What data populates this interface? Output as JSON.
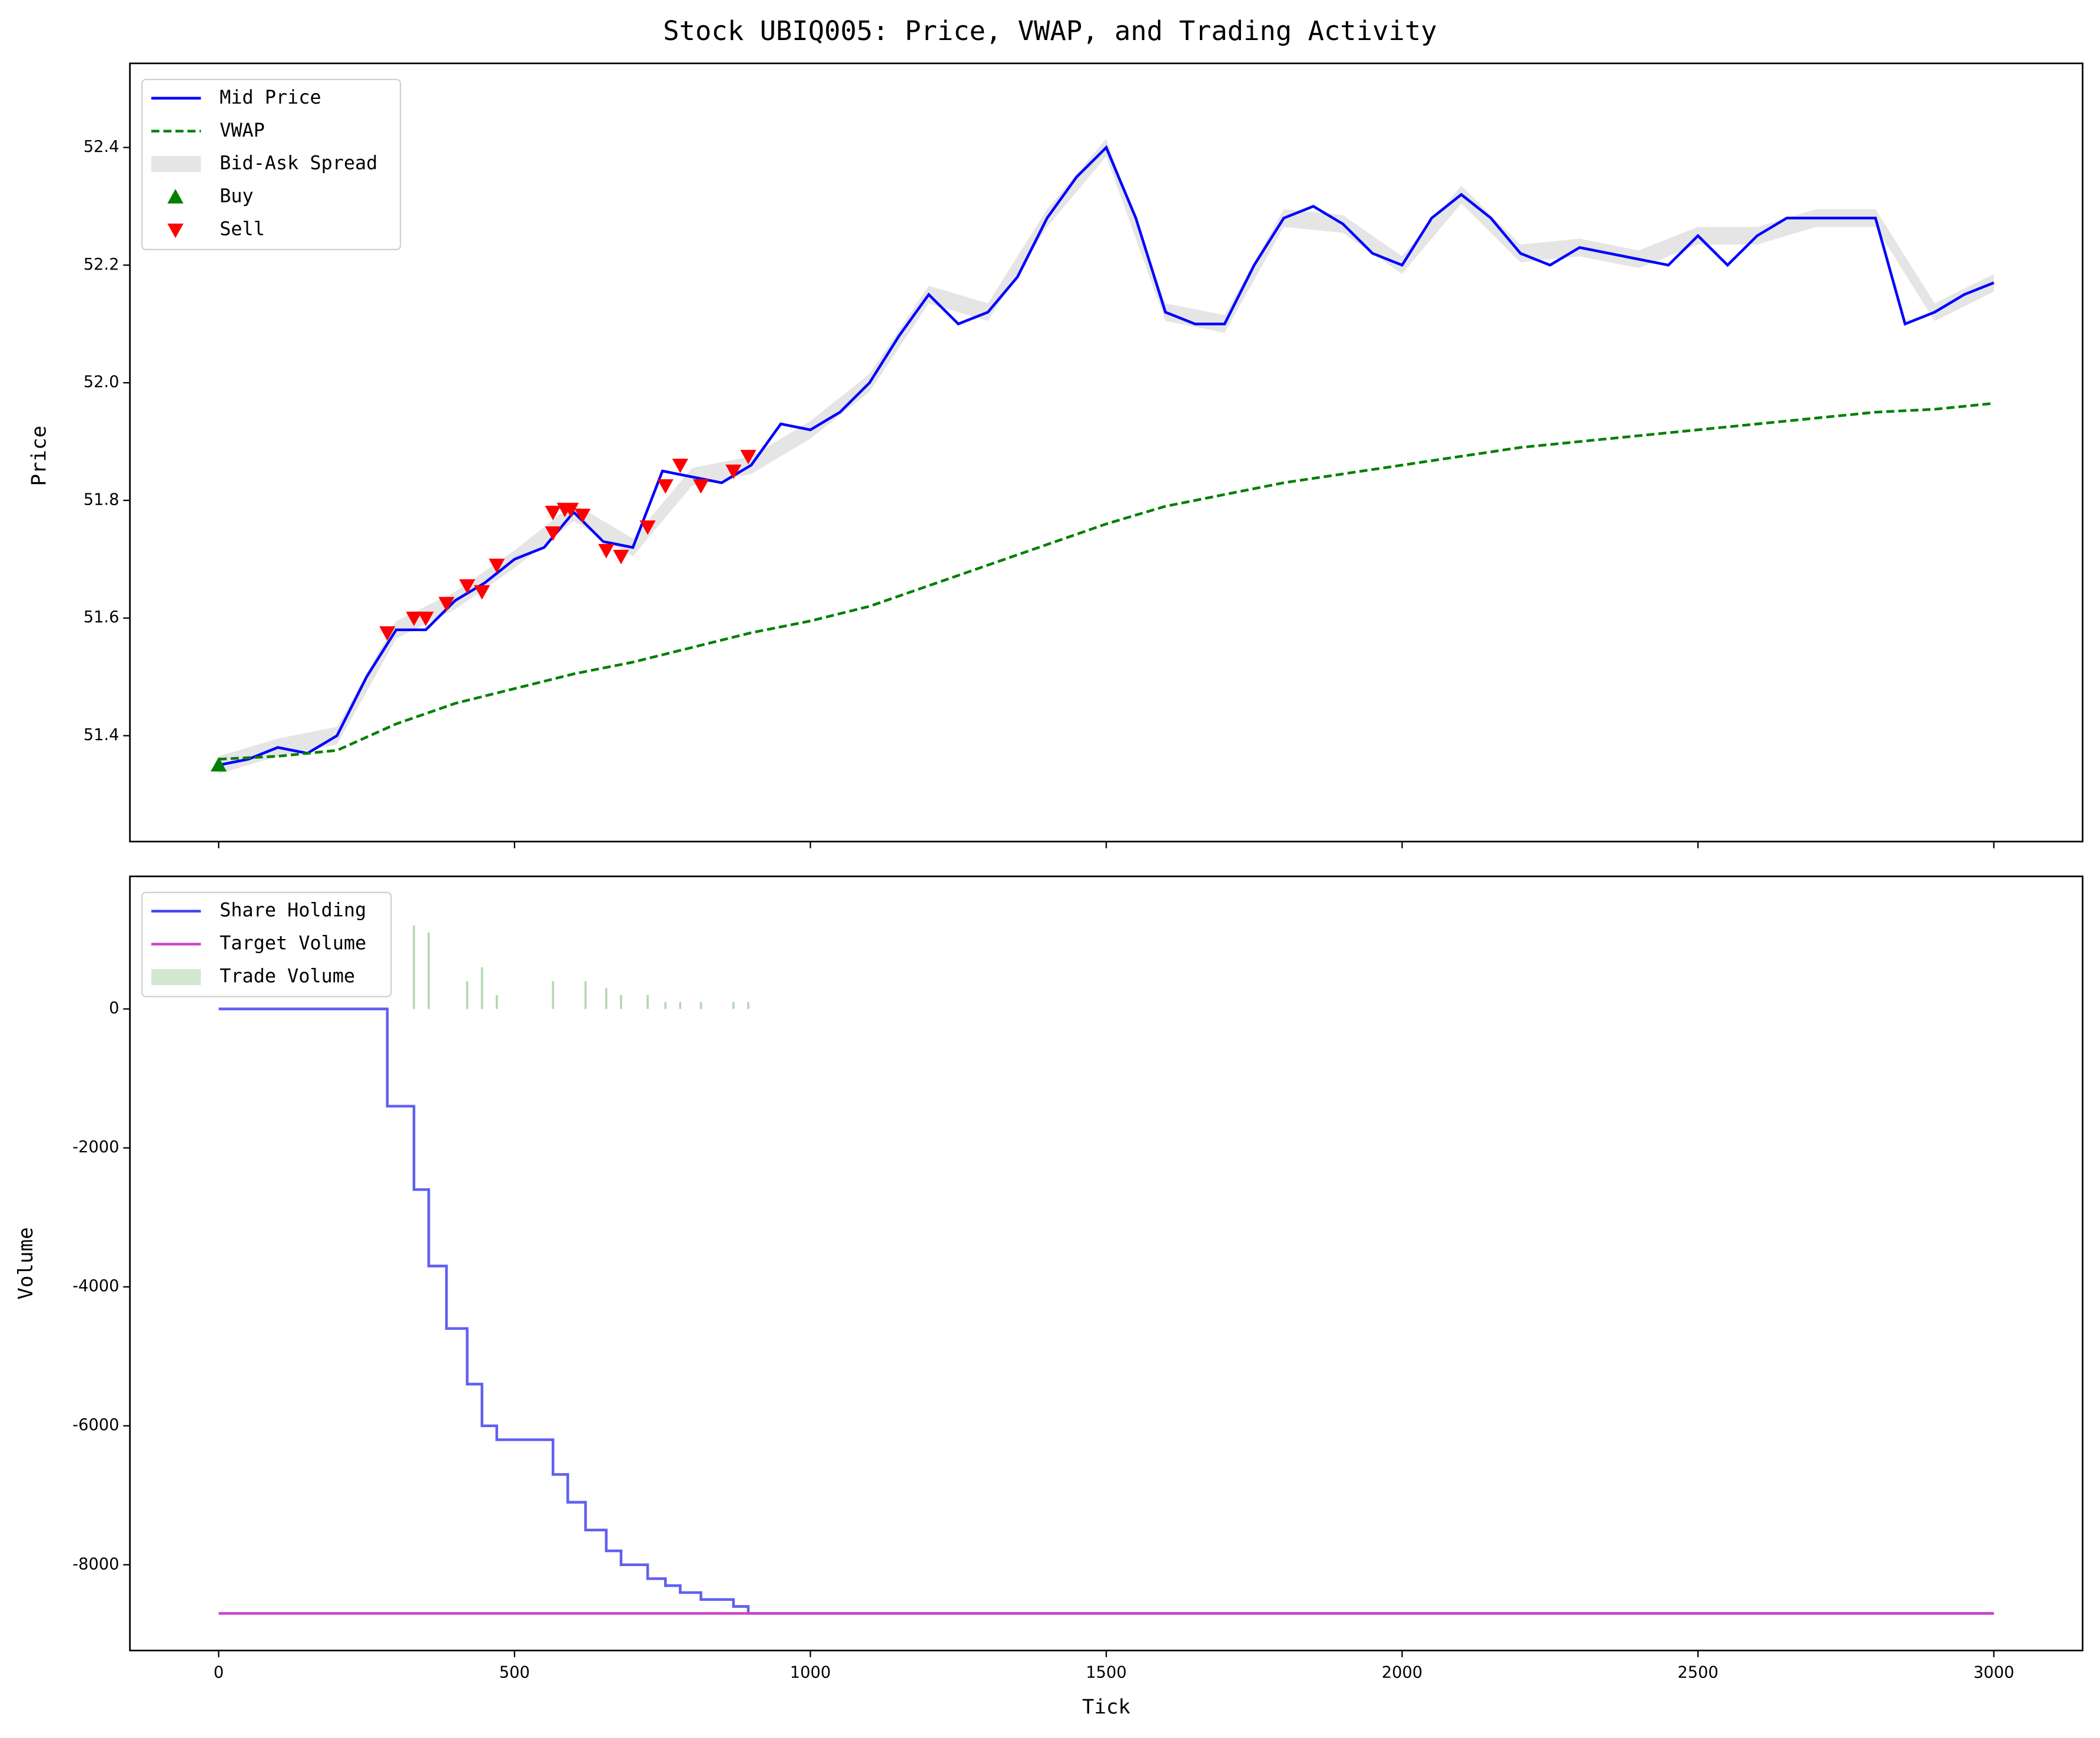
{
  "chart_data": [
    {
      "type": "line",
      "title": "Stock UBIQ005: Price, VWAP, and Trading Activity",
      "ylabel": "Price",
      "xlim": [
        -150,
        3150
      ],
      "xticks": [
        0,
        500,
        1000,
        1500,
        2000,
        2500,
        3000
      ],
      "show_xtick_labels": false,
      "ylim": [
        51.22,
        52.543
      ],
      "yticks": [
        51.4,
        51.6,
        51.8,
        {
          "value": 52,
          "label": "52.0"
        },
        52.2,
        52.4
      ],
      "legend": "upper left",
      "series": [
        {
          "name": "Mid Price",
          "type": "line",
          "color": "#0000ff",
          "x": [
            0,
            50,
            100,
            150,
            200,
            250,
            300,
            350,
            400,
            450,
            500,
            550,
            600,
            650,
            700,
            750,
            800,
            850,
            900,
            950,
            1000,
            1050,
            1100,
            1150,
            1200,
            1250,
            1300,
            1350,
            1400,
            1450,
            1500,
            1550,
            1600,
            1650,
            1700,
            1750,
            1800,
            1850,
            1900,
            1950,
            2000,
            2050,
            2100,
            2150,
            2200,
            2250,
            2300,
            2350,
            2400,
            2450,
            2500,
            2550,
            2600,
            2650,
            2700,
            2750,
            2800,
            2850,
            2900,
            2950,
            3000
          ],
          "values": [
            51.35,
            51.36,
            51.38,
            51.37,
            51.4,
            51.5,
            51.58,
            51.58,
            51.63,
            51.66,
            51.7,
            51.72,
            51.78,
            51.73,
            51.72,
            51.85,
            51.84,
            51.83,
            51.86,
            51.93,
            51.92,
            51.95,
            52.0,
            52.08,
            52.15,
            52.1,
            52.12,
            52.18,
            52.28,
            52.35,
            52.4,
            52.28,
            52.12,
            52.1,
            52.1,
            52.2,
            52.28,
            52.3,
            52.27,
            52.22,
            52.2,
            52.28,
            52.32,
            52.28,
            52.22,
            52.2,
            52.23,
            52.22,
            52.21,
            52.2,
            52.25,
            52.2,
            52.25,
            52.28,
            52.28,
            52.28,
            52.28,
            52.1,
            52.12,
            52.15,
            52.17
          ]
        },
        {
          "name": "VWAP",
          "type": "line",
          "style": "dashed",
          "color": "#008000",
          "x": [
            0,
            100,
            200,
            300,
            400,
            500,
            600,
            700,
            800,
            900,
            1000,
            1100,
            1200,
            1300,
            1400,
            1500,
            1600,
            1700,
            1800,
            1900,
            2000,
            2100,
            2200,
            2300,
            2400,
            2500,
            2600,
            2700,
            2800,
            2900,
            3000
          ],
          "values": [
            51.36,
            51.365,
            51.375,
            51.42,
            51.455,
            51.48,
            51.505,
            51.525,
            51.55,
            51.575,
            51.595,
            51.62,
            51.655,
            51.69,
            51.725,
            51.76,
            51.79,
            51.81,
            51.83,
            51.845,
            51.86,
            51.875,
            51.89,
            51.9,
            51.91,
            51.92,
            51.93,
            51.94,
            51.95,
            51.955,
            51.965
          ]
        },
        {
          "name": "Bid-Ask Spread",
          "type": "area",
          "color": "#d3d3d3",
          "x": [
            0,
            100,
            200,
            300,
            400,
            500,
            600,
            700,
            800,
            900,
            1000,
            1100,
            1200,
            1300,
            1400,
            1500,
            1600,
            1700,
            1800,
            1900,
            2000,
            2100,
            2200,
            2300,
            2400,
            2500,
            2600,
            2700,
            2800,
            2900,
            3000
          ],
          "low": [
            51.335,
            51.365,
            51.385,
            51.565,
            51.615,
            51.685,
            51.765,
            51.705,
            51.825,
            51.845,
            51.905,
            51.985,
            52.135,
            52.105,
            52.265,
            52.385,
            52.105,
            52.085,
            52.265,
            52.255,
            52.185,
            52.305,
            52.205,
            52.215,
            52.195,
            52.235,
            52.235,
            52.265,
            52.265,
            52.105,
            52.155
          ],
          "high": [
            51.365,
            51.395,
            51.415,
            51.595,
            51.645,
            51.715,
            51.795,
            51.735,
            51.855,
            51.875,
            51.935,
            52.015,
            52.165,
            52.135,
            52.295,
            52.415,
            52.135,
            52.115,
            52.295,
            52.285,
            52.215,
            52.335,
            52.235,
            52.245,
            52.225,
            52.265,
            52.265,
            52.295,
            52.295,
            52.135,
            52.185
          ]
        },
        {
          "name": "Buy",
          "type": "scatter",
          "marker": "up",
          "color": "#008000",
          "x": [
            0
          ],
          "values": [
            51.35
          ]
        },
        {
          "name": "Sell",
          "type": "scatter",
          "marker": "down",
          "color": "#ff0000",
          "x": [
            285,
            330,
            350,
            385,
            420,
            445,
            470,
            565,
            565,
            585,
            595,
            615,
            655,
            680,
            725,
            755,
            780,
            815,
            870,
            895
          ],
          "values": [
            51.575,
            51.6,
            51.6,
            51.625,
            51.655,
            51.645,
            51.69,
            51.745,
            51.78,
            51.785,
            51.785,
            51.775,
            51.715,
            51.705,
            51.755,
            51.825,
            51.86,
            51.825,
            51.85,
            51.875
          ]
        }
      ]
    },
    {
      "type": "line",
      "xlabel": "Tick",
      "ylabel": "Volume",
      "xlim": [
        -150,
        3150
      ],
      "xticks": [
        0,
        500,
        1000,
        1500,
        2000,
        2500,
        3000
      ],
      "show_xtick_labels": true,
      "ylim": [
        -9234,
        1908
      ],
      "yticks": [
        -8000,
        -6000,
        -4000,
        -2000,
        0
      ],
      "legend": "upper left",
      "series": [
        {
          "name": "Share Holding",
          "type": "line",
          "drawstyle": "steps-post",
          "color": "#4444ee",
          "x": [
            0,
            285,
            330,
            355,
            385,
            420,
            445,
            470,
            565,
            590,
            620,
            655,
            680,
            725,
            755,
            780,
            815,
            870,
            895,
            3000
          ],
          "values": [
            0,
            -1400,
            -2600,
            -3700,
            -4600,
            -5400,
            -6000,
            -6200,
            -6700,
            -7100,
            -7500,
            -7800,
            -8000,
            -8200,
            -8300,
            -8400,
            -8500,
            -8600,
            -8700,
            -8700
          ]
        },
        {
          "name": "Target Volume",
          "type": "line",
          "color": "#cc44cc",
          "x": [
            0,
            3000
          ],
          "values": [
            -8700,
            -8700
          ]
        },
        {
          "name": "Trade Volume",
          "type": "bar",
          "color": "#b2d8b2",
          "x": [
            330,
            355,
            420,
            445,
            470,
            565,
            620,
            655,
            680,
            725,
            755,
            780,
            815,
            870,
            895
          ],
          "values": [
            1200,
            1100,
            400,
            600,
            200,
            400,
            400,
            300,
            200,
            200,
            100,
            100,
            100,
            100,
            100
          ]
        }
      ]
    }
  ]
}
